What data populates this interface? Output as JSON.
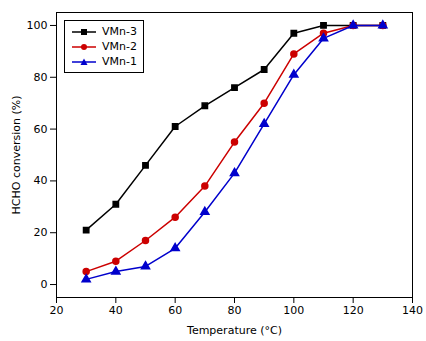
{
  "chart_data": {
    "type": "line",
    "xlabel": "Temperature (°C)",
    "ylabel": "HCHO conversion (%)",
    "xlim": [
      20,
      140
    ],
    "ylim": [
      -5,
      105
    ],
    "xticks": [
      20,
      40,
      60,
      80,
      100,
      120,
      140
    ],
    "yticks": [
      0,
      20,
      40,
      60,
      80,
      100
    ],
    "x": [
      30,
      40,
      50,
      60,
      70,
      80,
      90,
      100,
      110,
      120,
      130
    ],
    "series": [
      {
        "name": "VMn-3",
        "color": "#000000",
        "marker": "square",
        "values": [
          21,
          31,
          46,
          61,
          69,
          76,
          83,
          97,
          100,
          100,
          100
        ]
      },
      {
        "name": "VMn-2",
        "color": "#cc0000",
        "marker": "circle",
        "values": [
          5,
          9,
          17,
          26,
          38,
          55,
          70,
          89,
          97,
          100,
          100
        ]
      },
      {
        "name": "VMn-1",
        "color": "#0000cc",
        "marker": "triangle",
        "values": [
          2,
          5,
          7,
          14,
          28,
          43,
          62,
          81,
          95,
          100,
          100
        ]
      }
    ],
    "legend": "upper left",
    "grid": false
  }
}
